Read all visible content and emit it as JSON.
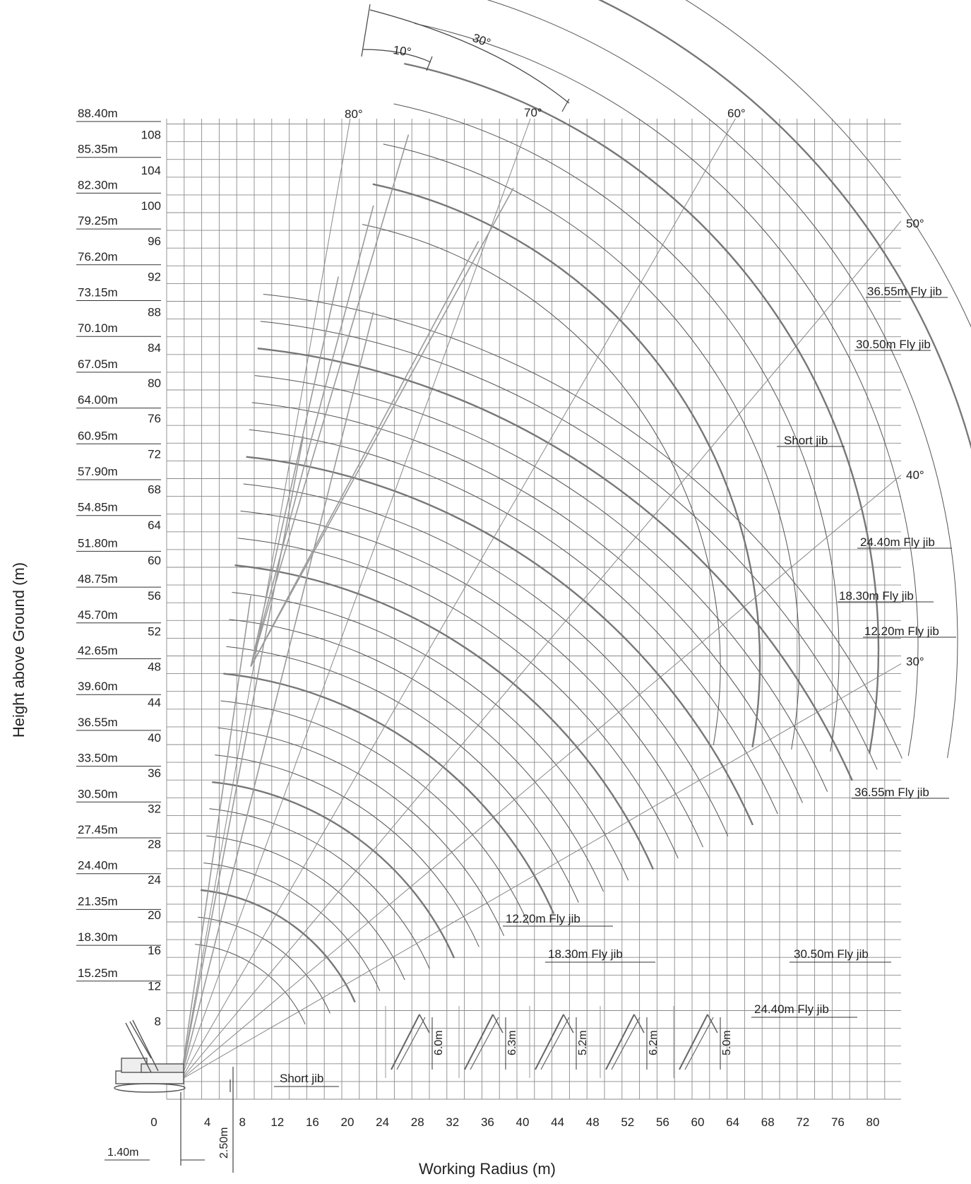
{
  "axes": {
    "y_title": "Height above Ground (m)",
    "x_title": "Working Radius (m)",
    "y_ticks": [
      "108",
      "104",
      "100",
      "96",
      "92",
      "88",
      "84",
      "80",
      "76",
      "72",
      "68",
      "64",
      "60",
      "56",
      "52",
      "48",
      "44",
      "40",
      "36",
      "32",
      "28",
      "24",
      "20",
      "16",
      "12",
      "8"
    ],
    "x_ticks": [
      "0",
      "4",
      "8",
      "12",
      "16",
      "20",
      "24",
      "28",
      "32",
      "36",
      "40",
      "44",
      "48",
      "52",
      "56",
      "60",
      "64",
      "68",
      "72",
      "76",
      "80"
    ]
  },
  "boom_lengths": [
    "88.40m",
    "85.35m",
    "82.30m",
    "79.25m",
    "76.20m",
    "73.15m",
    "70.10m",
    "67.05m",
    "64.00m",
    "60.95m",
    "57.90m",
    "54.85m",
    "51.80m",
    "48.75m",
    "45.70m",
    "42.65m",
    "39.60m",
    "36.55m",
    "33.50m",
    "30.50m",
    "27.45m",
    "24.40m",
    "21.35m",
    "18.30m",
    "15.25m"
  ],
  "angles": {
    "boom": [
      "80°",
      "70°",
      "60°",
      "50°",
      "40°",
      "30°"
    ],
    "offset": [
      "10°",
      "30°"
    ]
  },
  "jib_labels_right": [
    "36.55m Fly jib",
    "30.50m Fly jib",
    "Short jib",
    "24.40m Fly jib",
    "18.30m Fly jib",
    "12.20m Fly jib",
    "36.55m Fly jib"
  ],
  "jib_labels_bottom": [
    "12.20m Fly jib",
    "18.30m Fly jib",
    "30.50m Fly jib",
    "24.40m Fly jib",
    "Short jib"
  ],
  "dimensions": {
    "pivot_offset": "1.40m",
    "pivot_height": "2.50m",
    "insets": [
      "6.0m",
      "6.3m",
      "5.2m",
      "6.2m",
      "5.0m"
    ]
  }
}
